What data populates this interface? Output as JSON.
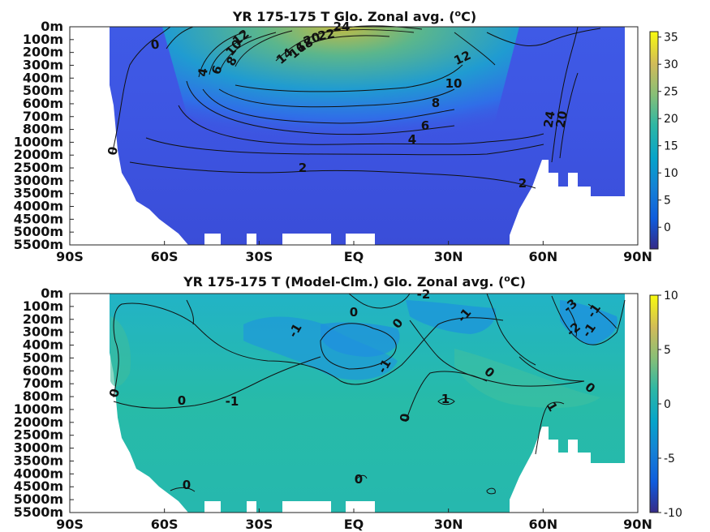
{
  "chart_data": [
    {
      "type": "heatmap",
      "title": "YR 175-175 T Glo. Zonal avg. (",
      "title_unit": "C)",
      "title_sup": "o",
      "x_ticks": [
        "90S",
        "60S",
        "30S",
        "EQ",
        "30N",
        "60N",
        "90N"
      ],
      "y_ticks": [
        "0m",
        "100m",
        "200m",
        "300m",
        "400m",
        "500m",
        "600m",
        "700m",
        "800m",
        "1000m",
        "2000m",
        "2500m",
        "3000m",
        "3500m",
        "4000m",
        "4500m",
        "5000m",
        "5500m"
      ],
      "colorbar_ticks": [
        "35",
        "30",
        "25",
        "20",
        "15",
        "10",
        "5",
        "0"
      ],
      "colorbar_range": [
        -4,
        36
      ],
      "colormap": "parula",
      "contour_labels": [
        "0",
        "2",
        "4",
        "6",
        "8",
        "10",
        "12",
        "14",
        "16",
        "18",
        "20",
        "22",
        "24",
        "0",
        "2",
        "4",
        "6",
        "8",
        "10",
        "12",
        "24",
        "20",
        "0",
        "2"
      ],
      "contour_levels": [
        0,
        2,
        4,
        6,
        8,
        10,
        12,
        14,
        16,
        18,
        20,
        22,
        24
      ],
      "max_value_near_surface_equator": 27
    },
    {
      "type": "heatmap",
      "title": "YR 175-175 T (Model-Clm.) Glo. Zonal avg. (",
      "title_unit": "C)",
      "title_sup": "o",
      "x_ticks": [
        "90S",
        "60S",
        "30S",
        "EQ",
        "30N",
        "60N",
        "90N"
      ],
      "y_ticks": [
        "0m",
        "100m",
        "200m",
        "300m",
        "400m",
        "500m",
        "600m",
        "700m",
        "800m",
        "1000m",
        "2000m",
        "2500m",
        "3000m",
        "3500m",
        "4000m",
        "4500m",
        "5000m",
        "5500m"
      ],
      "colorbar_ticks": [
        "10",
        "5",
        "0",
        "-5",
        "-10"
      ],
      "colorbar_range": [
        -10,
        10
      ],
      "colormap": "parula",
      "contour_labels": [
        "0",
        "0",
        "-1",
        "-1",
        "0",
        "0",
        "-1",
        "-2",
        "-1",
        "-3",
        "-1",
        "-2",
        "-1",
        "0",
        "0",
        "1",
        "0",
        "1",
        "0",
        "0"
      ],
      "contour_levels": [
        -3,
        -2,
        -1,
        0,
        1
      ]
    }
  ]
}
